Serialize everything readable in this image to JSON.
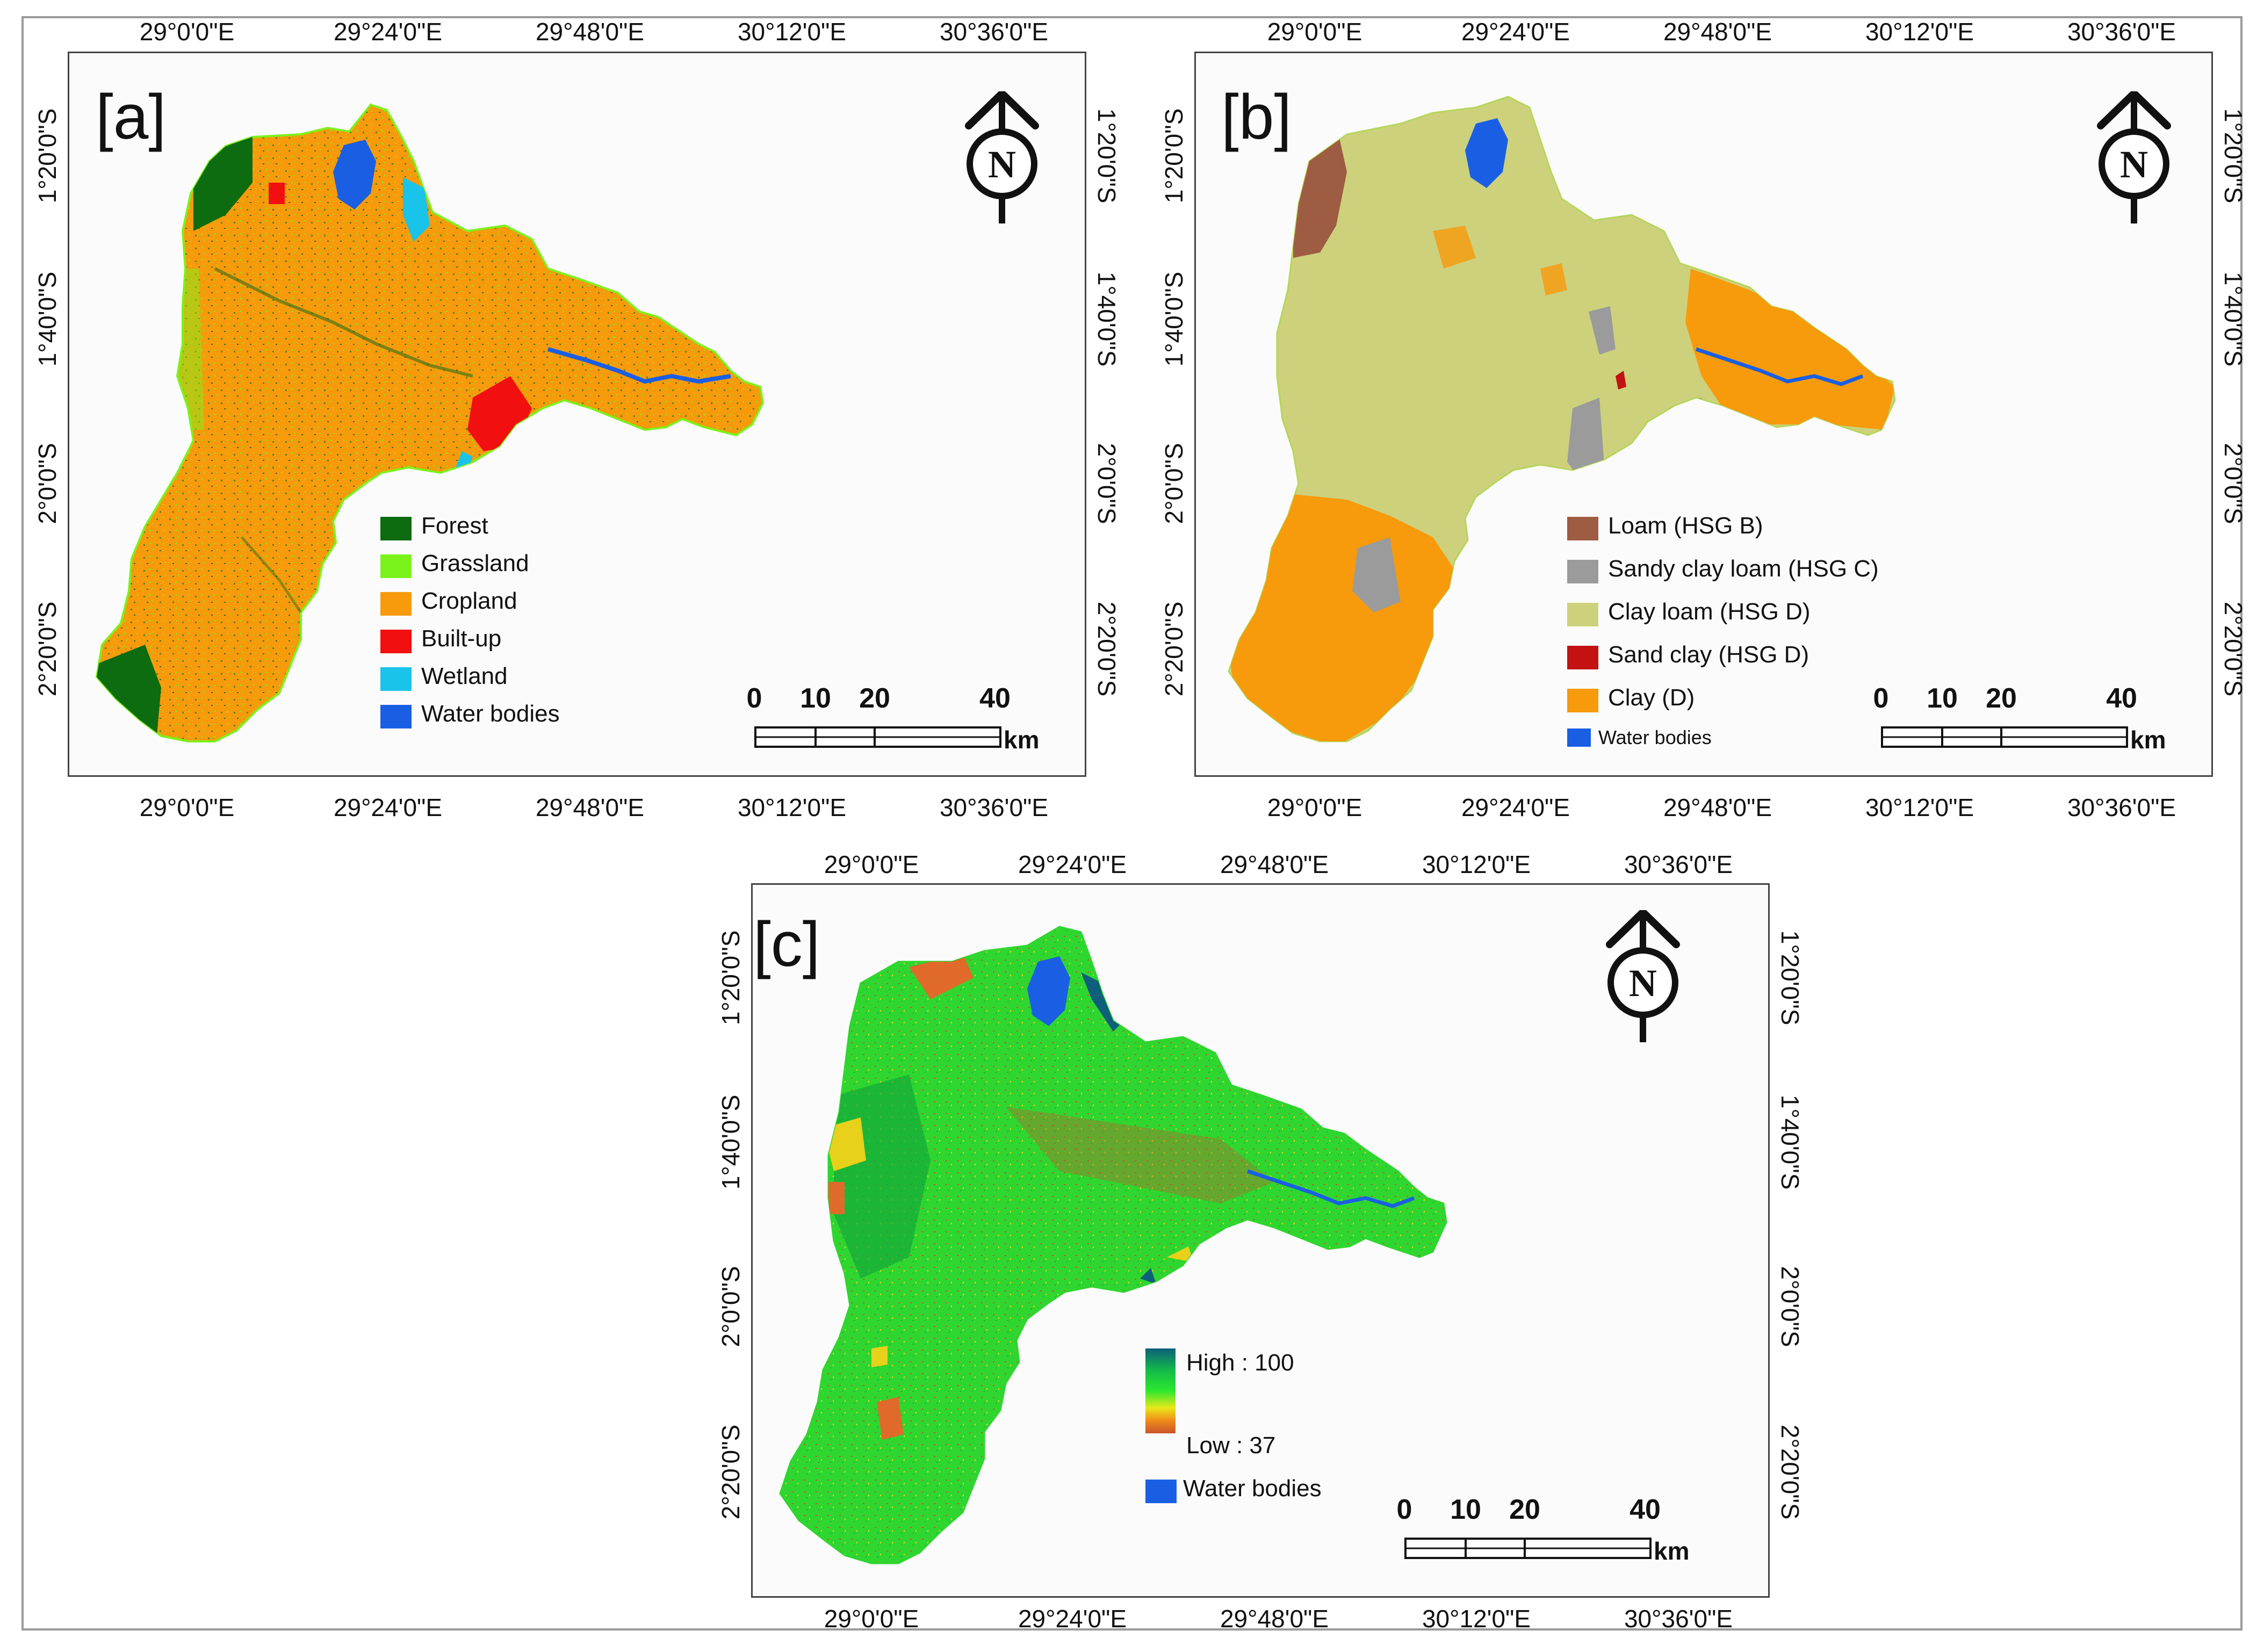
{
  "axes": {
    "lon_labels": [
      "29°0'0\"E",
      "29°24'0\"E",
      "29°48'0\"E",
      "30°12'0\"E",
      "30°36'0\"E"
    ],
    "lat_labels": [
      "1°20'0\"S",
      "1°40'0\"S",
      "2°0'0\"S",
      "2°20'0\"S"
    ]
  },
  "north_arrow": {
    "letter": "N"
  },
  "scale_bar": {
    "ticks": [
      "0",
      "10",
      "20",
      "40"
    ],
    "unit": "km"
  },
  "panel_a": {
    "label": "[a]",
    "legend": [
      {
        "name": "Forest",
        "color": "#0d6b10"
      },
      {
        "name": "Grassland",
        "color": "#7cf21c"
      },
      {
        "name": "Cropland",
        "color": "#f79a0b"
      },
      {
        "name": "Built-up",
        "color": "#f20f0f"
      },
      {
        "name": "Wetland",
        "color": "#19c3ea"
      },
      {
        "name": "Water bodies",
        "color": "#1a5fe3"
      }
    ]
  },
  "panel_b": {
    "label": "[b]",
    "legend": [
      {
        "name": "Loam (HSG B)",
        "color": "#9e5c42"
      },
      {
        "name": "Sandy clay loam (HSG C)",
        "color": "#9b9b9b"
      },
      {
        "name": "Clay loam (HSG D)",
        "color": "#cdd17c"
      },
      {
        "name": "Sand clay (HSG D)",
        "color": "#c21212"
      },
      {
        "name": "Clay (D)",
        "color": "#f79a0b"
      }
    ],
    "water_label": "Water bodies",
    "water_color": "#1a5fe3"
  },
  "panel_c": {
    "label": "[c]",
    "legend_high": "High : 100",
    "legend_low": "Low : 37",
    "water_label": "Water bodies",
    "water_color": "#1a5fe3",
    "ramp_colors": [
      "#0d5f7a",
      "#12b84a",
      "#2de82e",
      "#e8e81a",
      "#f08a1a",
      "#c8552b"
    ]
  },
  "colors": {
    "cropland": "#f79a0b",
    "forest": "#0d6b10",
    "grassland": "#7cf21c",
    "builtup": "#f20f0f",
    "wetland": "#19c3ea",
    "water": "#1a5fe3",
    "clayloam": "#cdd17c",
    "loam": "#9e5c42",
    "sandyclayloam": "#9b9b9b",
    "sandclay": "#c21212",
    "cn_green": "#2fd62f",
    "cn_dark": "#14a83a",
    "cn_orange": "#e06a2a",
    "cn_yellow": "#e8d11a"
  }
}
